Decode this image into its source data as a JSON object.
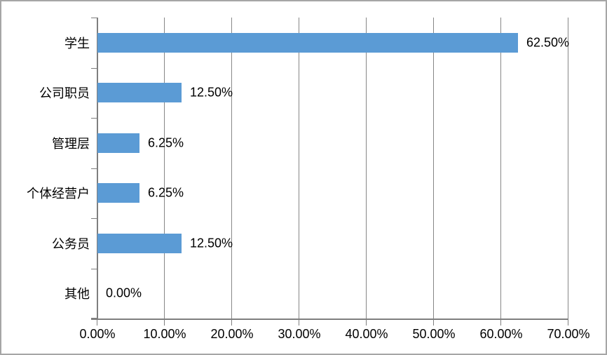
{
  "chart_data": {
    "type": "bar",
    "orientation": "horizontal",
    "title": "",
    "xlabel": "",
    "ylabel": "",
    "categories": [
      "学生",
      "公司职员",
      "管理层",
      "个体经营户",
      "公务员",
      "其他"
    ],
    "values": [
      62.5,
      12.5,
      6.25,
      6.25,
      12.5,
      0
    ],
    "value_labels": [
      "62.50%",
      "12.50%",
      "6.25%",
      "6.25%",
      "12.50%",
      "0.00%"
    ],
    "xlim": [
      0,
      70
    ],
    "x_tick_step": 10,
    "x_tick_labels": [
      "0.00%",
      "10.00%",
      "20.00%",
      "30.00%",
      "40.00%",
      "50.00%",
      "60.00%",
      "70.00%"
    ],
    "grid": "vertical-on",
    "legend": "none",
    "data_label_position": "outside-end",
    "colors": {
      "bar": "#5B9BD5",
      "gridline": "#878787",
      "axis": "#7F7F7F",
      "text": "#000000",
      "chart_border": "#A6A6A6",
      "background": "#FFFFFF"
    }
  }
}
